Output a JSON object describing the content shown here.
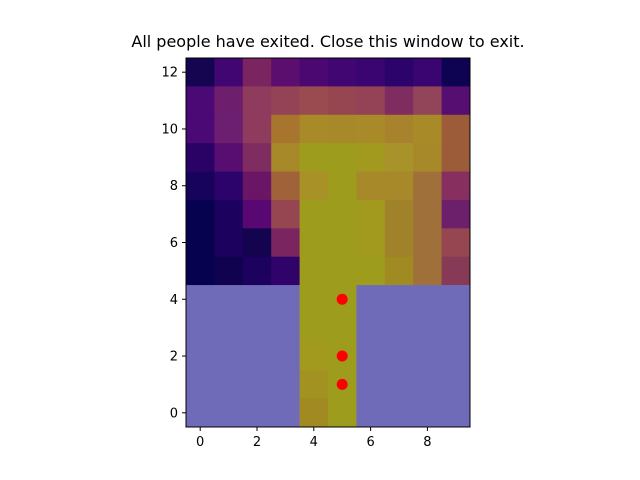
{
  "window": {
    "title": "All people have exited. Close this window to exit."
  },
  "chart_data": {
    "type": "heatmap",
    "title": "All people have exited. Close this window to exit.",
    "xlabel": "",
    "ylabel": "",
    "xlim": [
      -0.5,
      9.5
    ],
    "ylim": [
      -0.5,
      12.5
    ],
    "x_ticks": [
      0,
      2,
      4,
      6,
      8
    ],
    "y_ticks": [
      0,
      2,
      4,
      6,
      8,
      10,
      12
    ],
    "grid": false,
    "legend": "none",
    "rows_top_to_bottom": [
      [
        "#150550",
        "#420673",
        "#7a2560",
        "#5c0e6e",
        "#4a0870",
        "#420673",
        "#3a0570",
        "#2c036b",
        "#3a0570",
        "#0d0352"
      ],
      [
        "#4b0975",
        "#6d1f6e",
        "#8e3b5e",
        "#944255",
        "#9a4b50",
        "#964650",
        "#944255",
        "#7f2d61",
        "#924458",
        "#560f70"
      ],
      [
        "#4b0975",
        "#6c1f70",
        "#8e3b5e",
        "#a8752e",
        "#a88a28",
        "#a8892a",
        "#a88a28",
        "#a8822c",
        "#a88a28",
        "#9c5c3a"
      ],
      [
        "#2a0266",
        "#580e70",
        "#7f2d61",
        "#a8892a",
        "#9e9c1c",
        "#9e9c1c",
        "#a29a1e",
        "#a8922a",
        "#a8892a",
        "#9c5c3a"
      ],
      [
        "#17025c",
        "#2c036b",
        "#6a1565",
        "#a06238",
        "#a89228",
        "#9e9c1c",
        "#a8892a",
        "#a8892a",
        "#a0703a",
        "#873060"
      ],
      [
        "#06024f",
        "#1c025e",
        "#580773",
        "#964650",
        "#9e9c1c",
        "#9e9c1c",
        "#a29a1e",
        "#a0822a",
        "#a0703a",
        "#6c1f6b"
      ],
      [
        "#06024f",
        "#1c025e",
        "#14034f",
        "#7a2560",
        "#9e9c1c",
        "#9e9c1c",
        "#a29a1e",
        "#a0822a",
        "#a0703a",
        "#964650"
      ],
      [
        "#06024f",
        "#10024f",
        "#1c025e",
        "#30036a",
        "#9e9c1c",
        "#9e9c1c",
        "#9e9c1c",
        "#a08a22",
        "#a0703a",
        "#873a55"
      ],
      [
        null,
        null,
        null,
        null,
        "#9e9c1c",
        "#9e9c1c",
        null,
        null,
        null,
        null
      ],
      [
        null,
        null,
        null,
        null,
        "#9e9c1c",
        "#9e9c1c",
        null,
        null,
        null,
        null
      ],
      [
        null,
        null,
        null,
        null,
        "#a29a1e",
        "#9e9c1c",
        null,
        null,
        null,
        null
      ],
      [
        null,
        null,
        null,
        null,
        "#a29222",
        "#9e9c1c",
        null,
        null,
        null,
        null
      ],
      [
        null,
        null,
        null,
        null,
        "#a28a22",
        "#9e9c1c",
        null,
        null,
        null,
        null
      ]
    ],
    "wall_color": "#6f6bb8",
    "people": {
      "color": "#ff0000",
      "points": [
        {
          "x": 5,
          "y": 4
        },
        {
          "x": 5,
          "y": 2
        },
        {
          "x": 5,
          "y": 1
        }
      ]
    }
  }
}
